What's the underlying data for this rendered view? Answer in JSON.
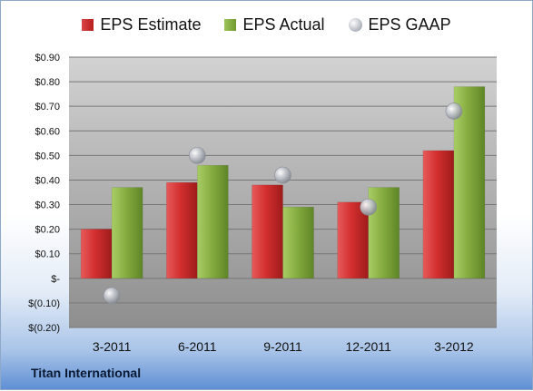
{
  "chart_data": {
    "type": "bar",
    "categories": [
      "3-2011",
      "6-2011",
      "9-2011",
      "12-2011",
      "3-2012"
    ],
    "series": [
      {
        "name": "EPS Estimate",
        "values": [
          0.2,
          0.39,
          0.38,
          0.31,
          0.52
        ],
        "color": "#c62828"
      },
      {
        "name": "EPS Actual",
        "values": [
          0.37,
          0.46,
          0.29,
          0.37,
          0.78
        ],
        "color": "#7ea63a"
      },
      {
        "name": "EPS GAAP",
        "values": [
          -0.07,
          0.5,
          0.42,
          0.29,
          0.68
        ],
        "color": "#a9adb5",
        "style": "marker"
      }
    ],
    "ylim": [
      -0.2,
      0.9
    ],
    "yticks": [
      -0.2,
      -0.1,
      0,
      0.1,
      0.2,
      0.3,
      0.4,
      0.5,
      0.6,
      0.7,
      0.8,
      0.9
    ],
    "ytick_labels": [
      "$(0.20)",
      "$(0.10)",
      "$-",
      "$0.10",
      "$0.20",
      "$0.30",
      "$0.40",
      "$0.50",
      "$0.60",
      "$0.70",
      "$0.80",
      "$0.90"
    ],
    "grid": true,
    "legend_position": "top",
    "footer": "Titan International"
  }
}
